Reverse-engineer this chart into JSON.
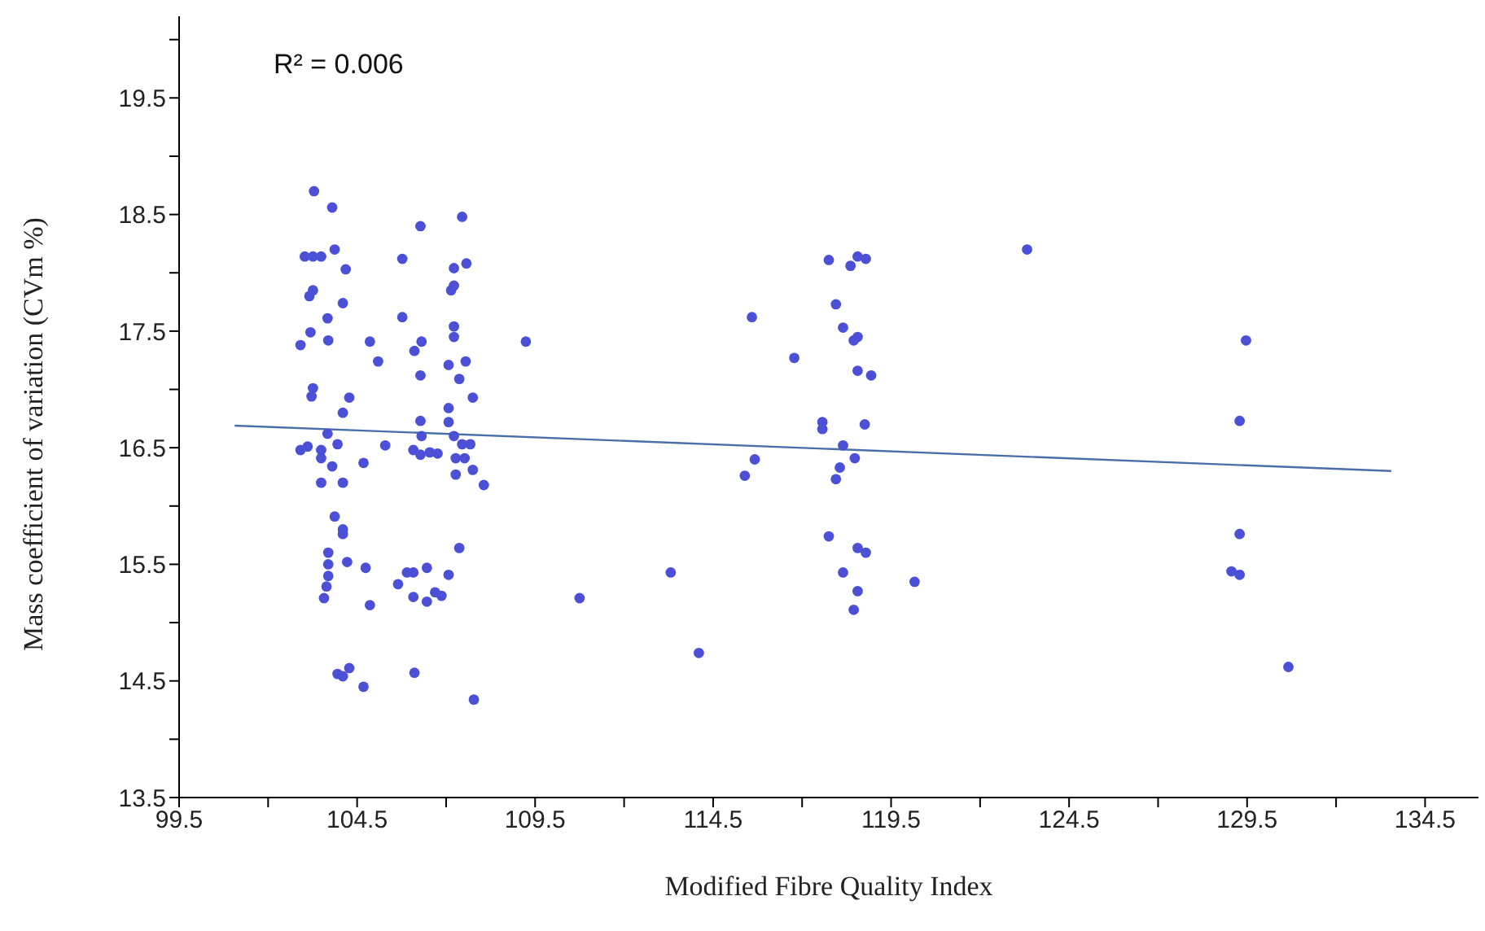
{
  "chart_data": {
    "type": "scatter",
    "xlabel": "Modified Fibre Quality Index",
    "ylabel": "Mass coefficient of variation (CVm %)",
    "annotations": [
      "R² = 0.006"
    ],
    "xlim": [
      99.5,
      136
    ],
    "ylim": [
      13.5,
      20.2
    ],
    "xticks": [
      99.5,
      {
        "value": 102,
        "label": null
      },
      104.5,
      {
        "value": 107,
        "label": null
      },
      109.5,
      {
        "value": 112,
        "label": null
      },
      114.5,
      {
        "value": 117,
        "label": null
      },
      119.5,
      {
        "value": 122,
        "label": null
      },
      124.5,
      {
        "value": 127,
        "label": null
      },
      129.5,
      {
        "value": 132,
        "label": null
      },
      134.5
    ],
    "yticks": [
      13.5,
      {
        "value": 14,
        "label": null
      },
      14.5,
      {
        "value": 15,
        "label": null
      },
      15.5,
      {
        "value": 16,
        "label": null
      },
      16.5,
      {
        "value": 17,
        "label": null
      },
      17.5,
      {
        "value": 18,
        "label": null
      },
      18.5,
      {
        "value": 19,
        "label": null
      },
      19.5,
      {
        "value": 20,
        "label": null
      }
    ],
    "grid": false,
    "legend": false,
    "marker": "circle",
    "series": [
      {
        "color": "#4b50d6",
        "x": [
          103.29,
          103.8,
          106.28,
          107.45,
          103.03,
          103.26,
          103.49,
          103.87,
          104.18,
          105.77,
          107.22,
          107.57,
          107.22,
          107.14,
          103.26,
          103.16,
          104.1,
          103.67,
          105.77,
          103.19,
          102.91,
          103.69,
          104.86,
          105.09,
          106.11,
          106.31,
          106.28,
          107.22,
          107.22,
          107.07,
          107.55,
          107.37,
          107.75,
          103.26,
          103.22,
          104.28,
          104.1,
          107.07,
          107.07,
          106.28,
          109.24,
          102.91,
          103.11,
          103.49,
          103.67,
          103.49,
          103.95,
          103.8,
          103.49,
          104.1,
          104.68,
          105.29,
          106.08,
          106.28,
          106.54,
          106.76,
          106.31,
          107.22,
          107.45,
          107.68,
          107.27,
          107.52,
          107.27,
          107.75,
          108.06,
          103.87,
          104.1,
          104.1,
          103.69,
          103.69,
          103.69,
          103.64,
          103.57,
          104.22,
          104.74,
          104.86,
          105.65,
          105.9,
          106.08,
          106.46,
          106.08,
          106.46,
          106.69,
          106.87,
          107.07,
          107.37,
          103.95,
          104.1,
          104.28,
          104.68,
          106.11,
          107.78,
          115.59,
          117.75,
          118.36,
          118.56,
          118.79,
          117.95,
          118.15,
          118.45,
          118.56,
          116.78,
          118.56,
          118.94,
          117.57,
          117.57,
          118.76,
          118.15,
          118.48,
          118.06,
          117.95,
          115.67,
          115.39,
          117.75,
          118.56,
          118.79,
          118.15,
          118.56,
          118.45,
          120.16,
          113.31,
          110.75,
          114.1,
          123.32,
          129.47,
          129.29,
          129.29,
          129.06,
          129.29,
          130.66
        ],
        "values": [
          18.7,
          18.56,
          18.4,
          18.48,
          18.14,
          18.14,
          18.14,
          18.2,
          18.03,
          18.12,
          18.04,
          18.08,
          17.89,
          17.85,
          17.85,
          17.8,
          17.74,
          17.61,
          17.62,
          17.49,
          17.38,
          17.42,
          17.41,
          17.24,
          17.33,
          17.41,
          17.12,
          17.54,
          17.45,
          17.21,
          17.24,
          17.09,
          16.93,
          17.01,
          16.94,
          16.93,
          16.8,
          16.84,
          16.72,
          16.73,
          17.41,
          16.48,
          16.51,
          16.48,
          16.62,
          16.41,
          16.53,
          16.34,
          16.2,
          16.2,
          16.37,
          16.52,
          16.48,
          16.44,
          16.46,
          16.45,
          16.6,
          16.6,
          16.53,
          16.53,
          16.41,
          16.41,
          16.27,
          16.31,
          16.18,
          15.91,
          15.8,
          15.76,
          15.6,
          15.5,
          15.4,
          15.31,
          15.21,
          15.52,
          15.47,
          15.15,
          15.33,
          15.43,
          15.43,
          15.47,
          15.22,
          15.18,
          15.26,
          15.23,
          15.41,
          15.64,
          14.56,
          14.54,
          14.61,
          14.45,
          14.57,
          14.34,
          17.62,
          18.11,
          18.06,
          18.14,
          18.12,
          17.73,
          17.53,
          17.42,
          17.45,
          17.27,
          17.16,
          17.12,
          16.72,
          16.66,
          16.7,
          16.52,
          16.41,
          16.33,
          16.23,
          16.4,
          16.26,
          15.74,
          15.64,
          15.6,
          15.43,
          15.27,
          15.11,
          15.35,
          15.43,
          15.21,
          14.74,
          18.2,
          17.42,
          16.73,
          15.76,
          15.44,
          15.41,
          14.62
        ]
      },
      {
        "type": "line",
        "color": "#4a6ea8",
        "marker": "none",
        "x": [
          101.06,
          133.55
        ],
        "values": [
          16.69,
          16.3
        ]
      }
    ]
  }
}
